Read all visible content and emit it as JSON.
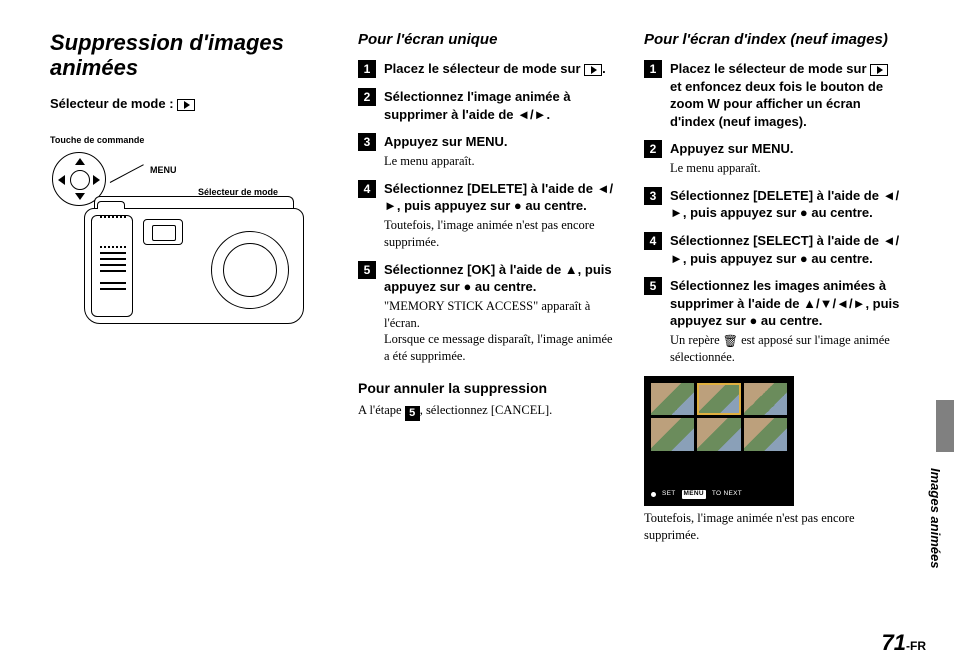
{
  "page": {
    "number": "71",
    "suffix": "-FR",
    "side_label": "Images animées"
  },
  "left": {
    "title": "Suppression d'images animées",
    "mode_label": "Sélecteur de mode :",
    "labels": {
      "touche": "Touche de commande",
      "menu": "MENU",
      "mode": "Sélecteur de mode"
    }
  },
  "mid": {
    "heading": "Pour l'écran unique",
    "steps": [
      {
        "n": "1",
        "head_a": "Placez le sélecteur de mode sur ",
        "head_b": "."
      },
      {
        "n": "2",
        "head": "Sélectionnez l'image animée à supprimer à l'aide de ◄/►."
      },
      {
        "n": "3",
        "head": "Appuyez sur MENU.",
        "desc": "Le menu apparaît."
      },
      {
        "n": "4",
        "head": "Sélectionnez [DELETE] à l'aide de ◄/►, puis appuyez sur ● au centre.",
        "desc": "Toutefois, l'image animée n'est pas encore supprimée."
      },
      {
        "n": "5",
        "head": "Sélectionnez [OK] à l'aide de ▲, puis appuyez sur ● au centre.",
        "desc": "\"MEMORY STICK ACCESS\" apparaît à l'écran.\nLorsque ce message disparaît, l'image animée a été supprimée."
      }
    ],
    "cancel_head": "Pour annuler la suppression",
    "cancel_body_a": "A l'étape ",
    "cancel_body_b": ", sélectionnez [CANCEL]."
  },
  "right": {
    "heading": "Pour l'écran d'index (neuf images)",
    "steps": [
      {
        "n": "1",
        "head_a": "Placez le sélecteur de mode sur ",
        "head_b": " et enfoncez deux fois le bouton de zoom W pour afficher un écran d'index (neuf images)."
      },
      {
        "n": "2",
        "head": "Appuyez sur MENU.",
        "desc": "Le menu apparaît."
      },
      {
        "n": "3",
        "head": "Sélectionnez [DELETE] à l'aide de ◄/►, puis appuyez sur ● au centre."
      },
      {
        "n": "4",
        "head": "Sélectionnez [SELECT] à l'aide de ◄/►, puis appuyez sur ● au centre."
      },
      {
        "n": "5",
        "head": "Sélectionnez les images animées à supprimer à l'aide de ▲/▼/◄/►, puis appuyez sur ● au centre.",
        "desc_a": "Un repère ",
        "desc_b": " est apposé sur l'image animée sélectionnée."
      }
    ],
    "idx_bar": {
      "set": "SET",
      "menu": "MENU",
      "next": "TO NEXT"
    },
    "caption": "Toutefois, l'image animée n'est pas encore supprimée."
  }
}
